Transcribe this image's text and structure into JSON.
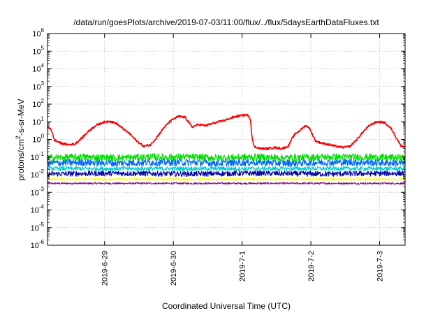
{
  "chart_data": {
    "type": "line",
    "title": "/data/run/goesPlots/archive/2019-07-03/11:00/flux/../flux/5daysEarthDataFluxes.txt",
    "xlabel": "Coordinated Universal Time (UTC)",
    "ylabel_parts": {
      "pre": "protons/cm",
      "sup": "2",
      "post": "-s-sr-MeV"
    },
    "yscale": "log",
    "ylim_exp": [
      -6,
      6
    ],
    "y_tick_exps": [
      -6,
      -5,
      -4,
      -3,
      -2,
      -1,
      0,
      1,
      2,
      3,
      4,
      5,
      6
    ],
    "x_range_days": [
      0,
      5.2
    ],
    "x_ticks": [
      {
        "label": "2019-6-29",
        "day": 0.83
      },
      {
        "label": "2019-6-30",
        "day": 1.83
      },
      {
        "label": "2019-7-1",
        "day": 2.83
      },
      {
        "label": "2019-7-2",
        "day": 3.83
      },
      {
        "label": "2019-7-3",
        "day": 4.83
      }
    ],
    "grid": true,
    "series": [
      {
        "color": "#ff0000",
        "noise": 0.06,
        "points": [
          [
            0.0,
            5
          ],
          [
            0.05,
            4
          ],
          [
            0.1,
            0.9
          ],
          [
            0.2,
            0.6
          ],
          [
            0.3,
            0.5
          ],
          [
            0.4,
            0.55
          ],
          [
            0.5,
            1.2
          ],
          [
            0.6,
            3
          ],
          [
            0.7,
            6
          ],
          [
            0.8,
            9
          ],
          [
            0.9,
            11
          ],
          [
            1.0,
            8
          ],
          [
            1.1,
            4
          ],
          [
            1.2,
            2
          ],
          [
            1.3,
            0.8
          ],
          [
            1.4,
            0.4
          ],
          [
            1.5,
            0.5
          ],
          [
            1.6,
            1.5
          ],
          [
            1.7,
            5
          ],
          [
            1.8,
            12
          ],
          [
            1.9,
            20
          ],
          [
            2.0,
            18
          ],
          [
            2.05,
            10
          ],
          [
            2.1,
            5
          ],
          [
            2.2,
            7
          ],
          [
            2.3,
            6
          ],
          [
            2.4,
            8
          ],
          [
            2.5,
            10
          ],
          [
            2.6,
            13
          ],
          [
            2.7,
            18
          ],
          [
            2.8,
            22
          ],
          [
            2.9,
            25
          ],
          [
            2.95,
            15
          ],
          [
            2.97,
            2
          ],
          [
            3.0,
            0.4
          ],
          [
            3.1,
            0.3
          ],
          [
            3.2,
            0.3
          ],
          [
            3.3,
            0.35
          ],
          [
            3.4,
            0.3
          ],
          [
            3.5,
            0.4
          ],
          [
            3.55,
            1
          ],
          [
            3.6,
            2
          ],
          [
            3.7,
            4
          ],
          [
            3.75,
            6
          ],
          [
            3.8,
            5
          ],
          [
            3.85,
            2
          ],
          [
            3.9,
            0.8
          ],
          [
            4.0,
            0.6
          ],
          [
            4.1,
            0.5
          ],
          [
            4.2,
            0.4
          ],
          [
            4.3,
            0.35
          ],
          [
            4.4,
            0.4
          ],
          [
            4.5,
            1
          ],
          [
            4.6,
            3
          ],
          [
            4.7,
            7
          ],
          [
            4.8,
            10
          ],
          [
            4.9,
            9
          ],
          [
            5.0,
            4
          ],
          [
            5.1,
            0.8
          ],
          [
            5.15,
            0.4
          ],
          [
            5.2,
            0.4
          ]
        ]
      },
      {
        "color": "#00dd00",
        "noise": 0.2,
        "points": [
          [
            0.0,
            0.09
          ],
          [
            0.5,
            0.1
          ],
          [
            1.0,
            0.09
          ],
          [
            1.5,
            0.1
          ],
          [
            2.0,
            0.1
          ],
          [
            2.5,
            0.09
          ],
          [
            3.0,
            0.1
          ],
          [
            3.5,
            0.09
          ],
          [
            4.0,
            0.1
          ],
          [
            4.5,
            0.1
          ],
          [
            5.2,
            0.09
          ]
        ]
      },
      {
        "color": "#0066ff",
        "noise": 0.2,
        "points": [
          [
            0.0,
            0.045
          ],
          [
            0.5,
            0.05
          ],
          [
            1.0,
            0.045
          ],
          [
            1.5,
            0.05
          ],
          [
            2.0,
            0.05
          ],
          [
            2.5,
            0.045
          ],
          [
            3.0,
            0.05
          ],
          [
            3.5,
            0.045
          ],
          [
            4.0,
            0.05
          ],
          [
            4.5,
            0.05
          ],
          [
            5.2,
            0.045
          ]
        ]
      },
      {
        "color": "#00cccc",
        "noise": 0.12,
        "points": [
          [
            0.0,
            0.022
          ],
          [
            1.0,
            0.022
          ],
          [
            2.0,
            0.022
          ],
          [
            3.0,
            0.022
          ],
          [
            4.0,
            0.022
          ],
          [
            5.2,
            0.022
          ]
        ]
      },
      {
        "color": "#0000aa",
        "noise": 0.15,
        "points": [
          [
            0.0,
            0.011
          ],
          [
            1.0,
            0.012
          ],
          [
            2.0,
            0.011
          ],
          [
            3.0,
            0.012
          ],
          [
            4.0,
            0.011
          ],
          [
            5.2,
            0.012
          ]
        ]
      },
      {
        "color": "#ffff00",
        "noise": 0.06,
        "points": [
          [
            0.0,
            0.0055
          ],
          [
            1.0,
            0.0055
          ],
          [
            2.0,
            0.0055
          ],
          [
            3.0,
            0.0055
          ],
          [
            4.0,
            0.0055
          ],
          [
            5.2,
            0.0055
          ]
        ]
      },
      {
        "color": "#800080",
        "noise": 0.05,
        "points": [
          [
            0.0,
            0.0032
          ],
          [
            1.0,
            0.0032
          ],
          [
            2.0,
            0.0032
          ],
          [
            3.0,
            0.0032
          ],
          [
            4.0,
            0.0032
          ],
          [
            5.2,
            0.0032
          ]
        ]
      }
    ]
  }
}
